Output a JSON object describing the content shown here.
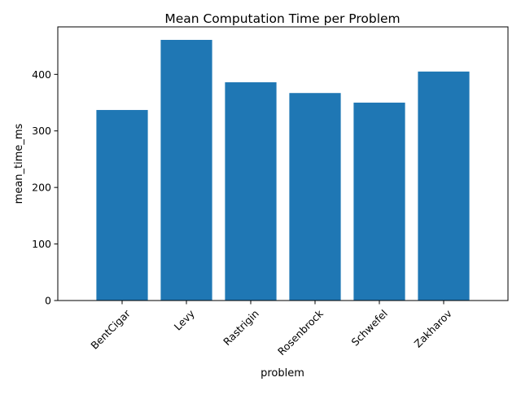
{
  "chart_data": {
    "type": "bar",
    "title": "Mean Computation Time per Problem",
    "xlabel": "problem",
    "ylabel": "mean_time_ms",
    "categories": [
      "BentCigar",
      "Levy",
      "Rastrigin",
      "Rosenbrock",
      "Schwefel",
      "Zakharov"
    ],
    "values": [
      337,
      461,
      386,
      367,
      350,
      405
    ],
    "ylim": [
      0,
      484
    ],
    "yticks": [
      0,
      100,
      200,
      300,
      400
    ],
    "grid": false,
    "bar_color": "#1f77b4",
    "x_tick_rotation_deg": 45
  }
}
